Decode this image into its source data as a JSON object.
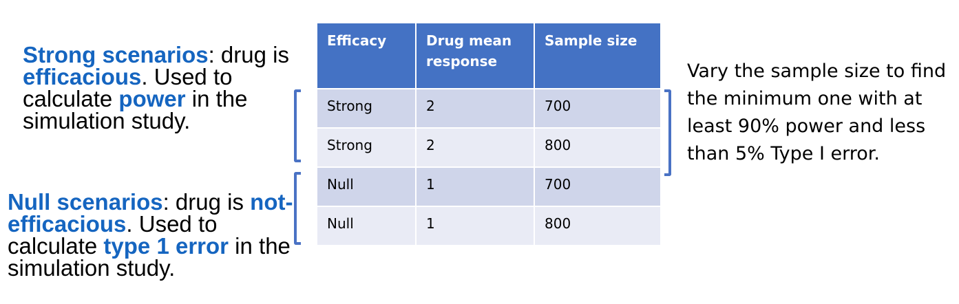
{
  "strong_note": {
    "part1": "Strong scenarios",
    "part2": ": drug is ",
    "part3": "efficacious",
    "part4": ". Used to calculate ",
    "part5": "power",
    "part6": " in the simulation study."
  },
  "null_note": {
    "part1": "Null scenarios",
    "part2": ": drug is ",
    "part3": "not-efficacious",
    "part4": ". Used to calculate ",
    "part5": "type 1 error",
    "part6": " in the simulation study."
  },
  "table": {
    "headers": [
      "Efficacy",
      "Drug mean response",
      "Sample size"
    ],
    "rows": [
      [
        "Strong",
        "2",
        "700"
      ],
      [
        "Strong",
        "2",
        "800"
      ],
      [
        "Null",
        "1",
        "700"
      ],
      [
        "Null",
        "1",
        "800"
      ]
    ]
  },
  "right_note": "Vary the sample size to find the minimum one with at least 90% power and less than 5% Type I error.",
  "colors": {
    "accent": "#1565c0",
    "bracket": "#4a72c4",
    "header_bg": "#4472c4",
    "row_odd": "#cfd5ea",
    "row_even": "#e9ebf5"
  }
}
